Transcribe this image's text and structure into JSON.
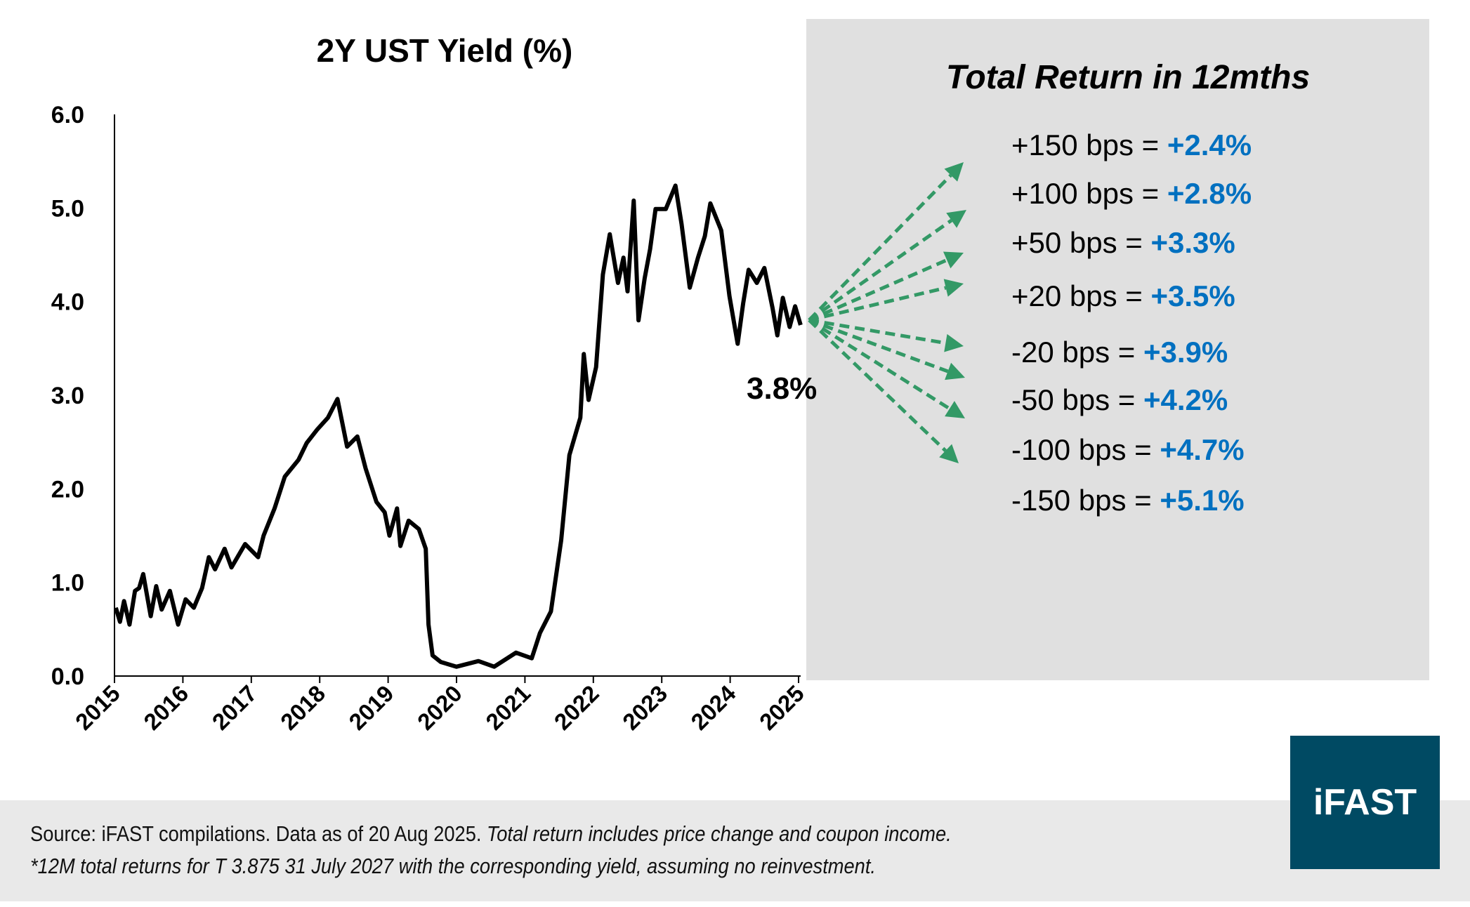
{
  "chart_data": {
    "type": "line",
    "title": "2Y UST Yield (%)",
    "xlabel": "",
    "ylabel": "",
    "xlim": [
      2015,
      2025
    ],
    "ylim": [
      0,
      6
    ],
    "x_ticks": [
      "2015",
      "2016",
      "2017",
      "2018",
      "2019",
      "2020",
      "2021",
      "2022",
      "2023",
      "2024",
      "2025"
    ],
    "y_ticks": [
      "0.0",
      "1.0",
      "2.0",
      "3.0",
      "4.0",
      "5.0",
      "6.0"
    ],
    "grid": false,
    "line_color": "#000000",
    "series": [
      {
        "points": [
          [
            2015.02,
            0.73
          ],
          [
            2015.08,
            0.58
          ],
          [
            2015.14,
            0.8
          ],
          [
            2015.22,
            0.55
          ],
          [
            2015.3,
            0.91
          ],
          [
            2015.36,
            0.94
          ],
          [
            2015.42,
            1.09
          ],
          [
            2015.53,
            0.64
          ],
          [
            2015.61,
            0.96
          ],
          [
            2015.69,
            0.71
          ],
          [
            2015.81,
            0.91
          ],
          [
            2015.93,
            0.55
          ],
          [
            2016.04,
            0.82
          ],
          [
            2016.16,
            0.73
          ],
          [
            2016.28,
            0.94
          ],
          [
            2016.38,
            1.27
          ],
          [
            2016.47,
            1.14
          ],
          [
            2016.61,
            1.36
          ],
          [
            2016.71,
            1.16
          ],
          [
            2016.91,
            1.41
          ],
          [
            2017.1,
            1.27
          ],
          [
            2017.18,
            1.5
          ],
          [
            2017.34,
            1.79
          ],
          [
            2017.49,
            2.13
          ],
          [
            2017.69,
            2.31
          ],
          [
            2017.81,
            2.49
          ],
          [
            2017.96,
            2.63
          ],
          [
            2018.12,
            2.76
          ],
          [
            2018.26,
            2.96
          ],
          [
            2018.4,
            2.45
          ],
          [
            2018.55,
            2.56
          ],
          [
            2018.67,
            2.22
          ],
          [
            2018.83,
            1.86
          ],
          [
            2018.95,
            1.75
          ],
          [
            2019.02,
            1.5
          ],
          [
            2019.13,
            1.79
          ],
          [
            2019.18,
            1.39
          ],
          [
            2019.3,
            1.66
          ],
          [
            2019.45,
            1.57
          ],
          [
            2019.55,
            1.36
          ],
          [
            2019.59,
            0.55
          ],
          [
            2019.65,
            0.22
          ],
          [
            2019.77,
            0.15
          ],
          [
            2020.0,
            0.1
          ],
          [
            2020.32,
            0.16
          ],
          [
            2020.55,
            0.1
          ],
          [
            2020.87,
            0.25
          ],
          [
            2021.1,
            0.19
          ],
          [
            2021.22,
            0.46
          ],
          [
            2021.38,
            0.69
          ],
          [
            2021.53,
            1.45
          ],
          [
            2021.65,
            2.36
          ],
          [
            2021.81,
            2.76
          ],
          [
            2021.86,
            3.44
          ],
          [
            2021.93,
            2.95
          ],
          [
            2022.04,
            3.3
          ],
          [
            2022.14,
            4.29
          ],
          [
            2022.24,
            4.72
          ],
          [
            2022.36,
            4.2
          ],
          [
            2022.44,
            4.47
          ],
          [
            2022.5,
            4.11
          ],
          [
            2022.59,
            5.08
          ],
          [
            2022.66,
            3.8
          ],
          [
            2022.75,
            4.25
          ],
          [
            2022.83,
            4.56
          ],
          [
            2022.91,
            4.99
          ],
          [
            2023.06,
            4.99
          ],
          [
            2023.2,
            5.24
          ],
          [
            2023.29,
            4.83
          ],
          [
            2023.41,
            4.15
          ],
          [
            2023.53,
            4.47
          ],
          [
            2023.63,
            4.7
          ],
          [
            2023.71,
            5.05
          ],
          [
            2023.87,
            4.76
          ],
          [
            2023.99,
            4.06
          ],
          [
            2024.11,
            3.55
          ],
          [
            2024.19,
            3.98
          ],
          [
            2024.27,
            4.34
          ],
          [
            2024.39,
            4.2
          ],
          [
            2024.5,
            4.36
          ],
          [
            2024.62,
            3.93
          ],
          [
            2024.69,
            3.64
          ],
          [
            2024.77,
            4.04
          ],
          [
            2024.87,
            3.73
          ],
          [
            2024.95,
            3.95
          ],
          [
            2025.03,
            3.75
          ]
        ]
      }
    ],
    "annotations": {
      "current_yield_label": "3.8%",
      "panel_title": "Total Return in 12mths",
      "arrow_color": "#339966",
      "value_color": "#0070c0",
      "panel_bg": "#e0e0e0",
      "scenarios": [
        {
          "shift": "+150 bps = ",
          "return": "+2.4%"
        },
        {
          "shift": "+100 bps = ",
          "return": "+2.8%"
        },
        {
          "shift": "+50 bps = ",
          "return": "+3.3%"
        },
        {
          "shift": "+20 bps = ",
          "return": "+3.5%"
        },
        {
          "shift": "-20 bps = ",
          "return": "+3.9%"
        },
        {
          "shift": "-50 bps = ",
          "return": "+4.2%"
        },
        {
          "shift": "-100 bps = ",
          "return": "+4.7%"
        },
        {
          "shift": "-150 bps = ",
          "return": "+5.1%"
        }
      ]
    }
  },
  "footer": {
    "source": "Source: iFAST compilations. Data as of 20 Aug 2025. ",
    "note_inline": "Total return includes price change and coupon income.",
    "note2": "*12M total returns for T 3.875 31 July 2027 with the corresponding yield, assuming no reinvestment."
  },
  "logo": {
    "text": "iFAST",
    "color": "#004a63"
  }
}
